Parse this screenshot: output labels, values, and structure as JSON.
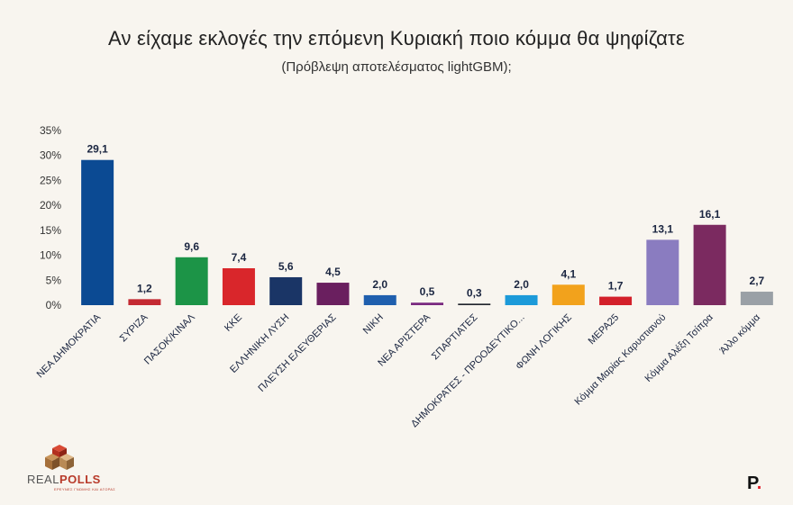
{
  "header": {
    "title": "Αν είχαμε εκλογές την επόμενη Κυριακή ποιο κόμμα θα ψηφίζατε",
    "subtitle": "(Πρόβλεψη αποτελέσματος lightGBM);"
  },
  "branding": {
    "left_logo": "REALPOLLS",
    "left_logo_part1": "REAL",
    "left_logo_part2": "POLLS",
    "left_tagline": "ΕΡΕΥΝΕΣ ΓΝΩΜΗΣ ΚΑΙ ΑΓΟΡΑΣ",
    "right_logo": "P."
  },
  "chart_data": {
    "type": "bar",
    "title": "Αν είχαμε εκλογές την επόμενη Κυριακή ποιο κόμμα θα ψηφίζατε",
    "subtitle": "(Πρόβλεψη αποτελέσματος lightGBM);",
    "categories": [
      "ΝΕΑ ΔΗΜΟΚΡΑΤΙΑ",
      "ΣΥΡΙΖΑ",
      "ΠΑΣΟΚ/ΚΙΝΑΛ",
      "ΚΚΕ",
      "ΕΛΛΗΝΙΚΗ ΛΥΣΗ",
      "ΠΛΕΥΣΗ ΕΛΕΥΘΕΡΙΑΣ",
      "ΝΙΚΗ",
      "ΝΕΑ ΑΡΙΣΤΕΡΑ",
      "ΣΠΑΡΤΙΑΤΕΣ",
      "ΔΗΜΟΚΡΑΤΕΣ - ΠΡΟΟΔΕΥΤΙΚΟ...",
      "ΦΩΝΗ ΛΟΓΙΚΗΣ",
      "ΜΕΡΑ25",
      "Κόμμα Μαρίας Καρυστιανού",
      "Κόμμα Αλέξη Τσίπρα",
      "Άλλο κόμμα"
    ],
    "values": [
      29.1,
      1.2,
      9.6,
      7.4,
      5.6,
      4.5,
      2.0,
      0.5,
      0.3,
      2.0,
      4.1,
      1.7,
      13.1,
      16.1,
      2.7
    ],
    "value_labels": [
      "29,1",
      "1,2",
      "9,6",
      "7,4",
      "5,6",
      "4,5",
      "2,0",
      "0,5",
      "0,3",
      "2,0",
      "4,1",
      "1,7",
      "13,1",
      "16,1",
      "2,7"
    ],
    "colors": [
      "#0b4a93",
      "#c42a32",
      "#1c9447",
      "#d9262b",
      "#1a3566",
      "#6a1f5f",
      "#1f5fae",
      "#7a2a80",
      "#23262e",
      "#1c9ad9",
      "#f2a21c",
      "#d3202a",
      "#8a7cc0",
      "#7b2a60",
      "#9aa0a6"
    ],
    "yticks": [
      "0%",
      "5%",
      "10%",
      "15%",
      "20%",
      "25%",
      "30%",
      "35%"
    ],
    "ylim": [
      0,
      35
    ],
    "xlabel": "",
    "ylabel": "",
    "grid": false,
    "legend": "none"
  }
}
